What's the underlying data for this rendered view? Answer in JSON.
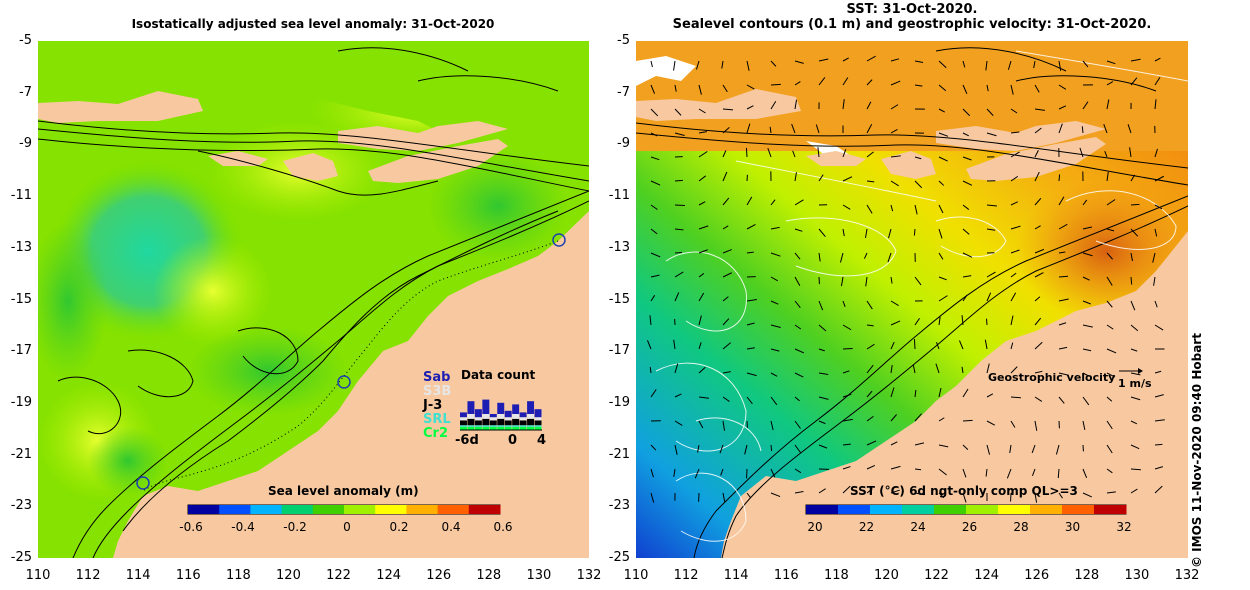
{
  "left_panel": {
    "title": "Isostatically adjusted sea level anomaly: 31-Oct-2020",
    "colorbar": {
      "title": "Sea level anomaly (m)",
      "ticks": [
        "-0.6",
        "-0.4",
        "-0.2",
        "0",
        "0.2",
        "0.4",
        "0.6"
      ],
      "colors": [
        "#0000a0",
        "#0050ff",
        "#00b4ff",
        "#00d070",
        "#40d000",
        "#a0f000",
        "#ffff00",
        "#ffb000",
        "#ff6000",
        "#c00000"
      ]
    },
    "data_count": {
      "title": "Data count",
      "satellites": [
        {
          "name": "Sab",
          "color": "#1e1eb4"
        },
        {
          "name": "S3B",
          "color": "#e6e6e6"
        },
        {
          "name": "J-3",
          "color": "#000000"
        },
        {
          "name": "SRL",
          "color": "#40e0d0"
        },
        {
          "name": "Cr2",
          "color": "#00ff40"
        }
      ],
      "axis_labels": [
        "-6d",
        "0",
        "4"
      ]
    }
  },
  "right_panel": {
    "title_line1": "SST: 31-Oct-2020.",
    "title_line2": "Sealevel contours (0.1 m) and geostrophic velocity: 31-Oct-2020.",
    "colorbar": {
      "title": "SST (°C) 6d ngt-only comp QL>=3",
      "ticks": [
        "20",
        "22",
        "24",
        "26",
        "28",
        "30",
        "32"
      ],
      "colors": [
        "#0000a0",
        "#0050ff",
        "#00b4ff",
        "#00d0a0",
        "#40d000",
        "#a0f000",
        "#ffff00",
        "#ffb000",
        "#ff6000",
        "#c00000"
      ]
    },
    "geostrophic_label": "Geostrophic velocity",
    "velocity_scale": "1 m/s"
  },
  "axes": {
    "lat_labels": [
      "-5",
      "-7",
      "-9",
      "-11",
      "-13",
      "-15",
      "-17",
      "-19",
      "-21",
      "-23",
      "-25"
    ],
    "lon_labels": [
      "110",
      "112",
      "114",
      "116",
      "118",
      "120",
      "122",
      "124",
      "126",
      "128",
      "130",
      "132"
    ]
  },
  "credit": "© IMOS 11-Nov-2020 09:40 Hobart",
  "colors": {
    "land": "#f8c9a0",
    "sla_background": "#7ee000",
    "sst_background": "#f2a020"
  }
}
